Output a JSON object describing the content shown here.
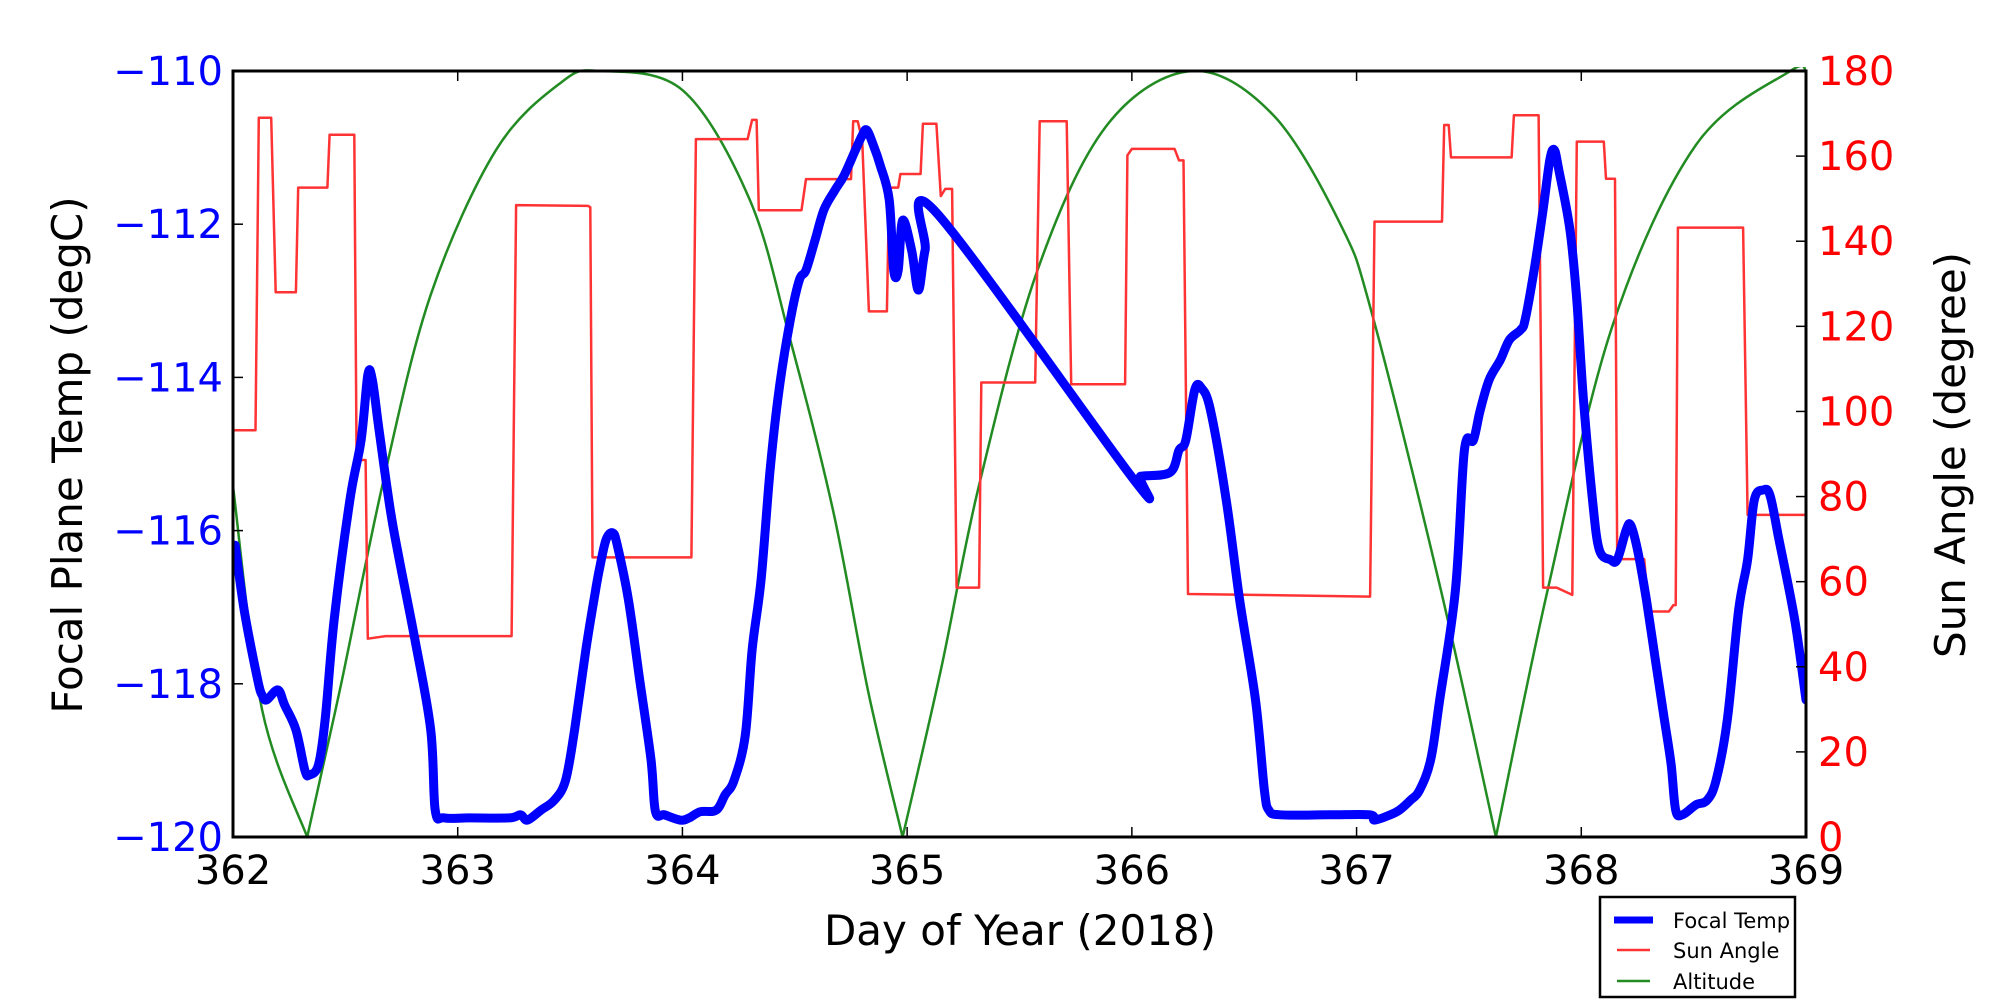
{
  "chart_data": {
    "type": "line",
    "title": "",
    "xlabel": "Day of Year (2018)",
    "ylabel": "Focal Plane Temp (degC)",
    "ylabel_right": "Sun Angle (degree)",
    "xlim": [
      362,
      369
    ],
    "ylim": [
      -120,
      -110
    ],
    "ylim_right": [
      0,
      180
    ],
    "grid": false,
    "legend_position": "bottom-right, outside below plot",
    "x_ticks": [
      "362",
      "363",
      "364",
      "365",
      "366",
      "367",
      "368",
      "369"
    ],
    "x_tick_values": [
      362,
      363,
      364,
      365,
      366,
      367,
      368,
      369
    ],
    "y_ticks": [
      "−120",
      "−118",
      "−116",
      "−114",
      "−112",
      "−110"
    ],
    "y_tick_values": [
      -120,
      -118,
      -116,
      -114,
      -112,
      -110
    ],
    "y_ticks_right": [
      "0",
      "20",
      "40",
      "60",
      "80",
      "100",
      "120",
      "140",
      "160",
      "180"
    ],
    "y_tick_values_right": [
      0,
      20,
      40,
      60,
      80,
      100,
      120,
      140,
      160,
      180
    ],
    "colors": {
      "left_axis_ticks": "#0000ff",
      "right_axis_ticks": "#ff0000"
    },
    "series": [
      {
        "name": "Focal Temp",
        "axis": "left",
        "color": "#0000ff",
        "style": "thick",
        "x": [
          362.01,
          362.05,
          362.11,
          362.13,
          362.15,
          362.2,
          362.23,
          362.28,
          362.32,
          362.34,
          362.38,
          362.41,
          362.45,
          362.52,
          362.57,
          362.6,
          362.62,
          362.65,
          362.7,
          362.74,
          362.81,
          362.88,
          362.9,
          362.94,
          363.05,
          363.23,
          363.28,
          363.31,
          363.37,
          363.43,
          363.48,
          363.52,
          363.57,
          363.61,
          363.63,
          363.66,
          363.69,
          363.71,
          363.76,
          363.81,
          363.86,
          363.88,
          363.92,
          363.99,
          364.03,
          364.08,
          364.15,
          364.19,
          364.23,
          364.28,
          364.31,
          364.35,
          364.39,
          364.43,
          364.48,
          364.52,
          364.55,
          364.59,
          364.63,
          364.68,
          364.72,
          364.77,
          364.8,
          364.82,
          364.85,
          364.88,
          364.92,
          364.94,
          364.96,
          364.98,
          365.02,
          365.05,
          365.08,
          365.13,
          366.01,
          366.04,
          366.17,
          366.21,
          366.24,
          366.28,
          366.31,
          366.35,
          366.42,
          366.48,
          366.55,
          366.59,
          366.61,
          366.66,
          366.88,
          367.06,
          367.08,
          367.15,
          367.19,
          367.24,
          367.28,
          367.33,
          367.37,
          367.44,
          367.48,
          367.52,
          367.55,
          367.59,
          367.64,
          367.68,
          367.73,
          367.75,
          367.79,
          367.83,
          367.86,
          367.88,
          367.9,
          367.95,
          367.98,
          368.01,
          368.05,
          368.08,
          368.13,
          368.16,
          368.2,
          368.22,
          368.25,
          368.29,
          368.33,
          368.37,
          368.4,
          368.42,
          368.45,
          368.51,
          368.56,
          368.6,
          368.65,
          368.7,
          368.74,
          368.77,
          368.81,
          368.84,
          368.88,
          368.95,
          369.0
        ],
        "y": [
          -116.19,
          -117.04,
          -117.95,
          -118.15,
          -118.21,
          -118.08,
          -118.28,
          -118.6,
          -119.13,
          -119.19,
          -119.06,
          -118.47,
          -117.17,
          -115.6,
          -114.82,
          -113.97,
          -114.03,
          -114.69,
          -115.73,
          -116.38,
          -117.43,
          -118.6,
          -119.65,
          -119.75,
          -119.75,
          -119.75,
          -119.71,
          -119.78,
          -119.65,
          -119.52,
          -119.26,
          -118.6,
          -117.56,
          -116.84,
          -116.51,
          -116.12,
          -116.03,
          -116.19,
          -116.91,
          -117.95,
          -118.99,
          -119.67,
          -119.71,
          -119.78,
          -119.75,
          -119.67,
          -119.65,
          -119.45,
          -119.26,
          -118.67,
          -117.56,
          -116.64,
          -115.21,
          -114.16,
          -113.25,
          -112.73,
          -112.6,
          -112.21,
          -111.81,
          -111.55,
          -111.36,
          -111.03,
          -110.84,
          -110.77,
          -110.97,
          -111.23,
          -111.68,
          -112.6,
          -112.6,
          -111.95,
          -112.34,
          -112.86,
          -112.34,
          -111.85,
          -115.34,
          -115.29,
          -115.24,
          -114.95,
          -114.82,
          -114.16,
          -114.14,
          -114.43,
          -115.6,
          -116.91,
          -118.21,
          -119.39,
          -119.65,
          -119.71,
          -119.71,
          -119.71,
          -119.78,
          -119.71,
          -119.65,
          -119.52,
          -119.39,
          -118.99,
          -118.21,
          -116.78,
          -114.95,
          -114.82,
          -114.43,
          -114.03,
          -113.77,
          -113.51,
          -113.38,
          -113.25,
          -112.6,
          -111.81,
          -111.16,
          -111.03,
          -111.29,
          -112.08,
          -112.99,
          -114.3,
          -115.6,
          -116.25,
          -116.38,
          -116.38,
          -115.99,
          -115.93,
          -116.25,
          -116.91,
          -117.69,
          -118.47,
          -119.06,
          -119.65,
          -119.71,
          -119.58,
          -119.52,
          -119.26,
          -118.47,
          -117.04,
          -116.38,
          -115.6,
          -115.47,
          -115.54,
          -116.12,
          -117.17,
          -118.21
        ]
      },
      {
        "name": "Sun Angle",
        "axis": "right",
        "color": "#ff3333",
        "style": "thin",
        "x": [
          362.0,
          362.1,
          362.115,
          362.17,
          362.19,
          362.28,
          362.29,
          362.42,
          362.43,
          362.54,
          362.55,
          362.59,
          362.6,
          362.68,
          363.24,
          363.26,
          363.58,
          363.59,
          363.6,
          364.04,
          364.06,
          364.29,
          364.31,
          364.33,
          364.34,
          364.53,
          364.55,
          364.75,
          364.76,
          364.78,
          364.8,
          364.83,
          364.91,
          364.92,
          364.96,
          364.97,
          365.06,
          365.07,
          365.13,
          365.15,
          365.17,
          365.2,
          365.22,
          365.32,
          365.33,
          365.57,
          365.59,
          365.71,
          365.73,
          365.97,
          365.98,
          366.0,
          366.19,
          366.21,
          366.23,
          366.25,
          367.06,
          367.08,
          367.38,
          367.39,
          367.41,
          367.42,
          367.69,
          367.7,
          367.81,
          367.83,
          367.89,
          367.96,
          367.98,
          368.1,
          368.11,
          368.15,
          368.16,
          368.28,
          368.3,
          368.39,
          368.41,
          368.42,
          368.43,
          368.72,
          368.74,
          369.0
        ],
        "y": [
          95.6,
          95.6,
          169,
          169,
          128,
          128,
          152.6,
          152.6,
          165,
          165,
          88.6,
          88.6,
          46.6,
          47.2,
          47.2,
          148.5,
          148.3,
          148,
          65.7,
          65.7,
          164,
          164,
          168.5,
          168.5,
          147.3,
          147.3,
          154.6,
          154.6,
          168.2,
          168.2,
          163.8,
          123.5,
          123.5,
          152.6,
          152.6,
          155.8,
          155.8,
          167.6,
          167.6,
          150.6,
          152.3,
          152.3,
          58.6,
          58.6,
          106.8,
          106.8,
          168.2,
          168.2,
          106.4,
          106.4,
          160.2,
          161.7,
          161.7,
          159,
          159,
          57.1,
          56.5,
          144.6,
          144.6,
          167.3,
          167.3,
          159.7,
          159.7,
          169.6,
          169.6,
          58.6,
          58.6,
          56.9,
          163.4,
          163.4,
          154.7,
          154.7,
          65.3,
          65.3,
          53,
          53,
          54.5,
          54.5,
          143.2,
          143.2,
          75.7,
          75.7
        ]
      },
      {
        "name": "Altitude",
        "axis": "right",
        "color": "#228b22",
        "style": "thin",
        "x": [
          362.0,
          362.13,
          362.33,
          362.48,
          362.67,
          362.88,
          363.17,
          363.46,
          363.63,
          364.0,
          364.3,
          364.48,
          364.67,
          364.83,
          364.98,
          365.15,
          365.32,
          365.58,
          365.89,
          366.27,
          366.63,
          366.93,
          367.07,
          367.37,
          367.62,
          367.85,
          368.14,
          368.51,
          368.93,
          369.0
        ],
        "y": [
          82.4,
          29.8,
          0,
          35.7,
          83.9,
          127.4,
          161.4,
          177.3,
          180,
          175.5,
          149.7,
          116.8,
          76.8,
          33.4,
          0,
          39.2,
          82.7,
          133.2,
          167.3,
          180,
          169.6,
          143.8,
          122.7,
          59.2,
          0,
          58,
          120.3,
          162.6,
          180,
          179.8
        ],
        "corner_at_zero": true
      }
    ]
  },
  "legend": {
    "items": [
      {
        "label": "Focal Temp",
        "color": "#0000ff"
      },
      {
        "label": "Sun Angle",
        "color": "#ff3333"
      },
      {
        "label": "Altitude",
        "color": "#228b22"
      }
    ]
  }
}
